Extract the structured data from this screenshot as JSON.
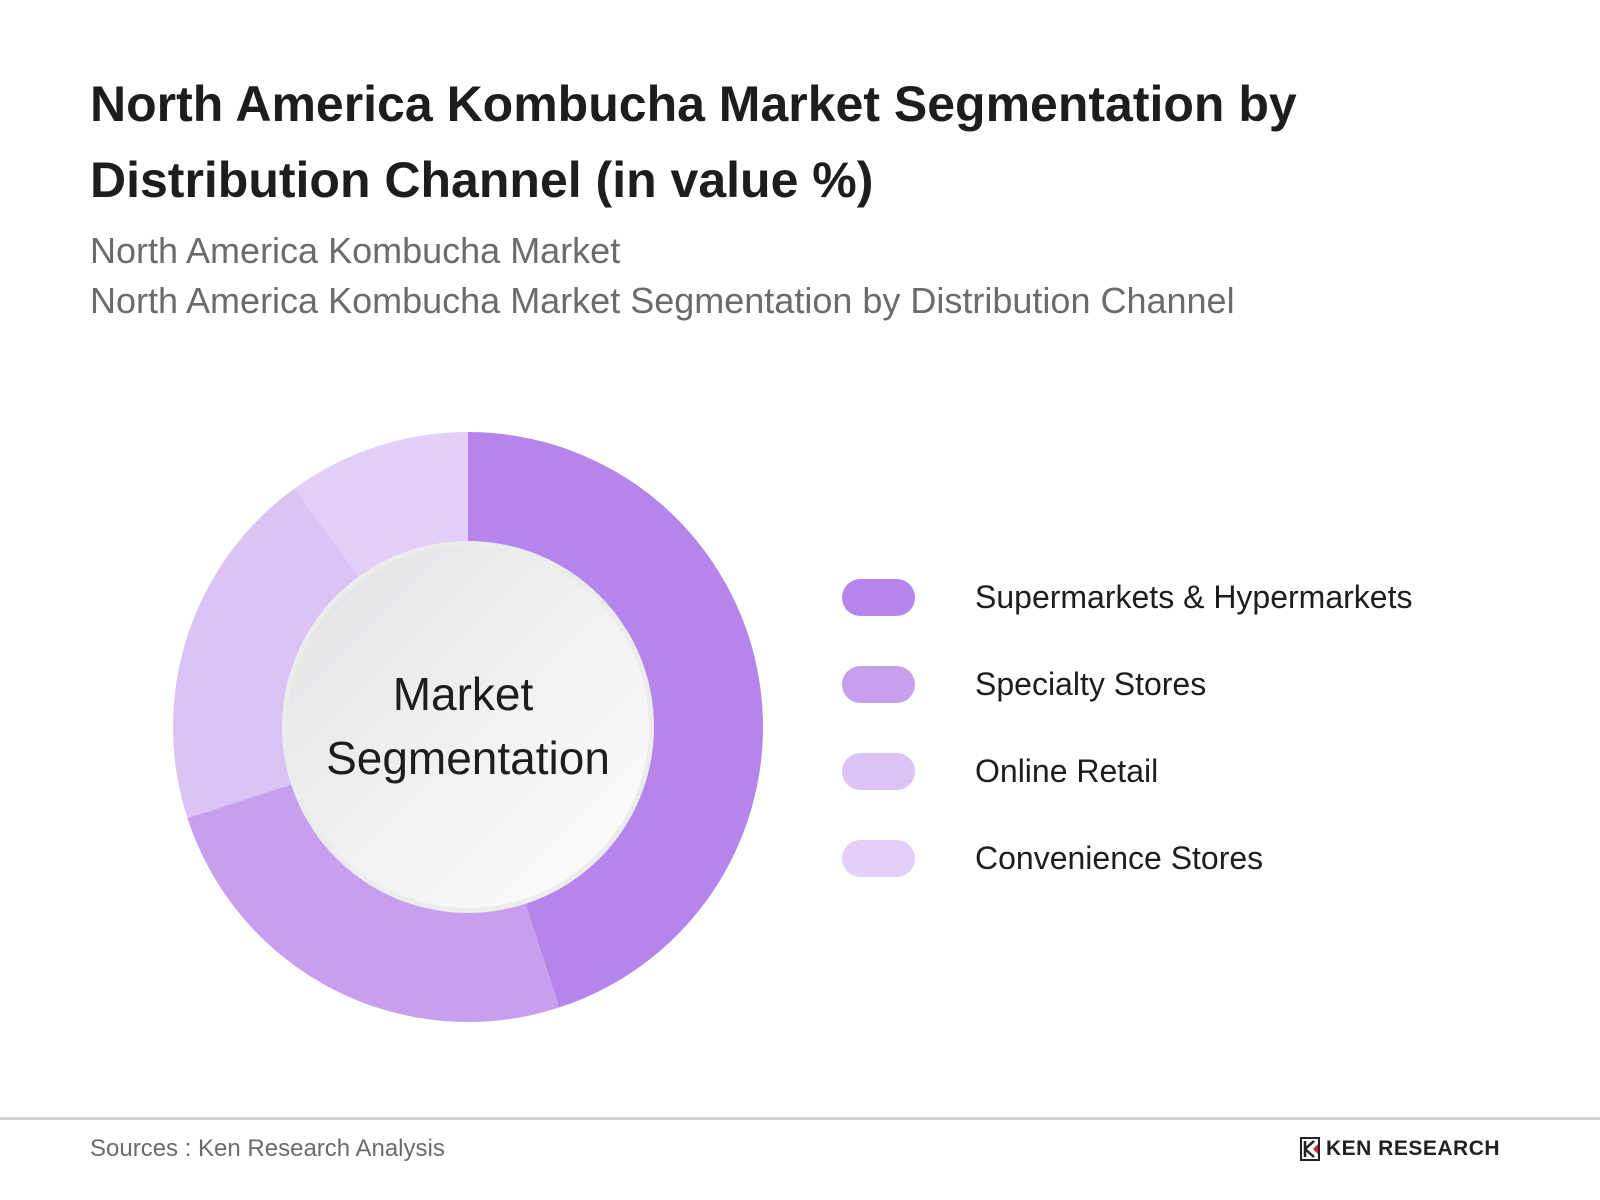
{
  "header": {
    "title": "North America Kombucha Market Segmentation by Distribution Channel (in value %)",
    "subtitle_1": "North America Kombucha Market",
    "subtitle_2": "North America Kombucha Market Segmentation by Distribution Channel"
  },
  "chart_data": {
    "type": "pie",
    "variant": "donut",
    "center_label_line1": "Market",
    "center_label_line2": "Segmentation",
    "categories": [
      "Supermarkets & Hypermarkets",
      "Specialty Stores",
      "Online Retail",
      "Convenience Stores"
    ],
    "values": [
      45,
      25,
      20,
      10
    ],
    "colors": [
      "#b585ec",
      "#c79fee",
      "#dcc3f5",
      "#e3cff7"
    ],
    "legend_position": "right"
  },
  "footer": {
    "source": "Sources : Ken Research Analysis",
    "logo_text": "KEN RESEARCH"
  }
}
